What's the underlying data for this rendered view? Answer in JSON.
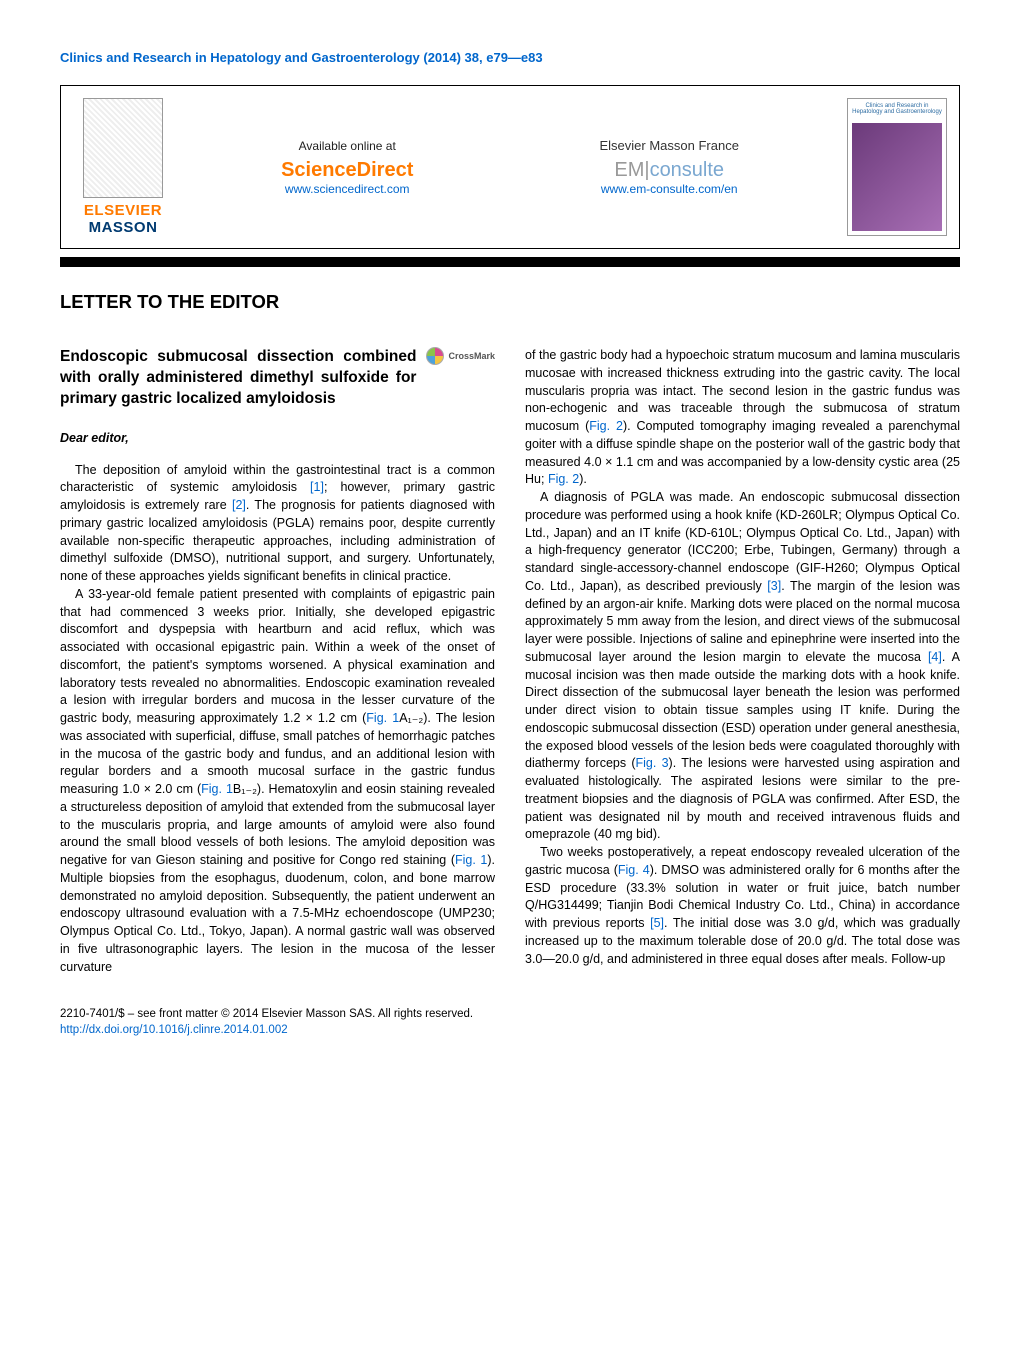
{
  "running_head": "Clinics and Research in Hepatology and Gastroenterology (2014) 38, e79—e83",
  "header": {
    "elsevier": "ELSEVIER",
    "masson": "MASSON",
    "available_at": "Available online at",
    "sciencedirect": "ScienceDirect",
    "sd_url": "www.sciencedirect.com",
    "em_france": "Elsevier Masson France",
    "em_logo_left": "EM",
    "em_logo_right": "consulte",
    "em_url": "www.em-consulte.com/en",
    "cover_title": "Clinics and Research in Hepatology and Gastroenterology"
  },
  "section": "LETTER TO THE EDITOR",
  "title": "Endoscopic submucosal dissection combined with orally administered dimethyl sulfoxide for primary gastric localized amyloidosis",
  "crossmark": "CrossMark",
  "dear": "Dear editor,",
  "left": {
    "p1a": "The deposition of amyloid within the gastrointestinal tract is a common characteristic of systemic amyloidosis ",
    "r1": "[1]",
    "p1b": "; however, primary gastric amyloidosis is extremely rare ",
    "r2": "[2]",
    "p1c": ". The prognosis for patients diagnosed with primary gastric localized amyloidosis (PGLA) remains poor, despite currently available non-specific therapeutic approaches, including administration of dimethyl sulfoxide (DMSO), nutritional support, and surgery. Unfortunately, none of these approaches yields significant benefits in clinical practice.",
    "p2a": "A 33-year-old female patient presented with complaints of epigastric pain that had commenced 3 weeks prior. Initially, she developed epigastric discomfort and dyspepsia with heartburn and acid reflux, which was associated with occasional epigastric pain. Within a week of the onset of discomfort, the patient's symptoms worsened. A physical examination and laboratory tests revealed no abnormalities. Endoscopic examination revealed a lesion with irregular borders and mucosa in the lesser curvature of the gastric body, measuring approximately 1.2 × 1.2 cm (",
    "f1a": "Fig. 1",
    "p2a2": "A₁₋₂). The lesion was associated with superficial, diffuse, small patches of hemorrhagic patches in the mucosa of the gastric body and fundus, and an additional lesion with regular borders and a smooth mucosal surface in the gastric fundus measuring 1.0 × 2.0 cm (",
    "f1b": "Fig. 1",
    "p2b": "B₁₋₂). Hematoxylin and eosin staining revealed a structureless deposition of amyloid that extended from the submucosal layer to the muscularis propria, and large amounts of amyloid were also found around the small blood vessels of both lesions. The amyloid deposition was negative for van Gieson staining and positive for Congo red staining (",
    "f1c": "Fig. 1",
    "p2c": "). Multiple biopsies from the esophagus, duodenum, colon, and bone marrow demonstrated no amyloid deposition. Subsequently, the patient underwent an endoscopy ultrasound evaluation with a 7.5-MHz echoendoscope (UMP230; Olympus Optical Co. Ltd., Tokyo, Japan). A normal gastric wall was observed in five ultrasonographic layers. The lesion in the mucosa of the lesser curvature"
  },
  "right": {
    "p1a": "of the gastric body had a hypoechoic stratum mucosum and lamina muscularis mucosae with increased thickness extruding into the gastric cavity. The local muscularis propria was intact. The second lesion in the gastric fundus was non-echogenic and was traceable through the submucosa of stratum mucosum (",
    "f2a": "Fig. 2",
    "p1b": "). Computed tomography imaging revealed a parenchymal goiter with a diffuse spindle shape on the posterior wall of the gastric body that measured 4.0 × 1.1 cm and was accompanied by a low-density cystic area (25 Hu; ",
    "f2b": "Fig. 2",
    "p1c": ").",
    "p2a": "A diagnosis of PGLA was made. An endoscopic submucosal dissection procedure was performed using a hook knife (KD-260LR; Olympus Optical Co. Ltd., Japan) and an IT knife (KD-610L; Olympus Optical Co. Ltd., Japan) with a high-frequency generator (ICC200; Erbe, Tubingen, Germany) through a standard single-accessory-channel endoscope (GIF-H260; Olympus Optical Co. Ltd., Japan), as described previously ",
    "r3": "[3]",
    "p2b": ". The margin of the lesion was defined by an argon-air knife. Marking dots were placed on the normal mucosa approximately 5 mm away from the lesion, and direct views of the submucosal layer were possible. Injections of saline and epinephrine were inserted into the submucosal layer around the lesion margin to elevate the mucosa ",
    "r4": "[4]",
    "p2c": ". A mucosal incision was then made outside the marking dots with a hook knife. Direct dissection of the submucosal layer beneath the lesion was performed under direct vision to obtain tissue samples using IT knife. During the endoscopic submucosal dissection (ESD) operation under general anesthesia, the exposed blood vessels of the lesion beds were coagulated thoroughly with diathermy forceps (",
    "f3": "Fig. 3",
    "p2d": "). The lesions were harvested using aspiration and evaluated histologically. The aspirated lesions were similar to the pre-treatment biopsies and the diagnosis of PGLA was confirmed. After ESD, the patient was designated nil by mouth and received intravenous fluids and omeprazole (40 mg bid).",
    "p3a": "Two weeks postoperatively, a repeat endoscopy revealed ulceration of the gastric mucosa (",
    "f4": "Fig. 4",
    "p3b": "). DMSO was administered orally for 6 months after the ESD procedure (33.3% solution in water or fruit juice, batch number Q/HG314499; Tianjin Bodi Chemical Industry Co. Ltd., China) in accordance with previous reports ",
    "r5": "[5]",
    "p3c": ". The initial dose was 3.0 g/d, which was gradually increased up to the maximum tolerable dose of 20.0 g/d. The total dose was 3.0—20.0 g/d, and administered in three equal doses after meals. Follow-up"
  },
  "footer": {
    "copyright": "2210-7401/$ – see front matter © 2014 Elsevier Masson SAS. All rights reserved.",
    "doi": "http://dx.doi.org/10.1016/j.clinre.2014.01.002"
  },
  "colors": {
    "link": "#0066cc",
    "orange": "#ff7a00",
    "navy": "#003a70"
  }
}
